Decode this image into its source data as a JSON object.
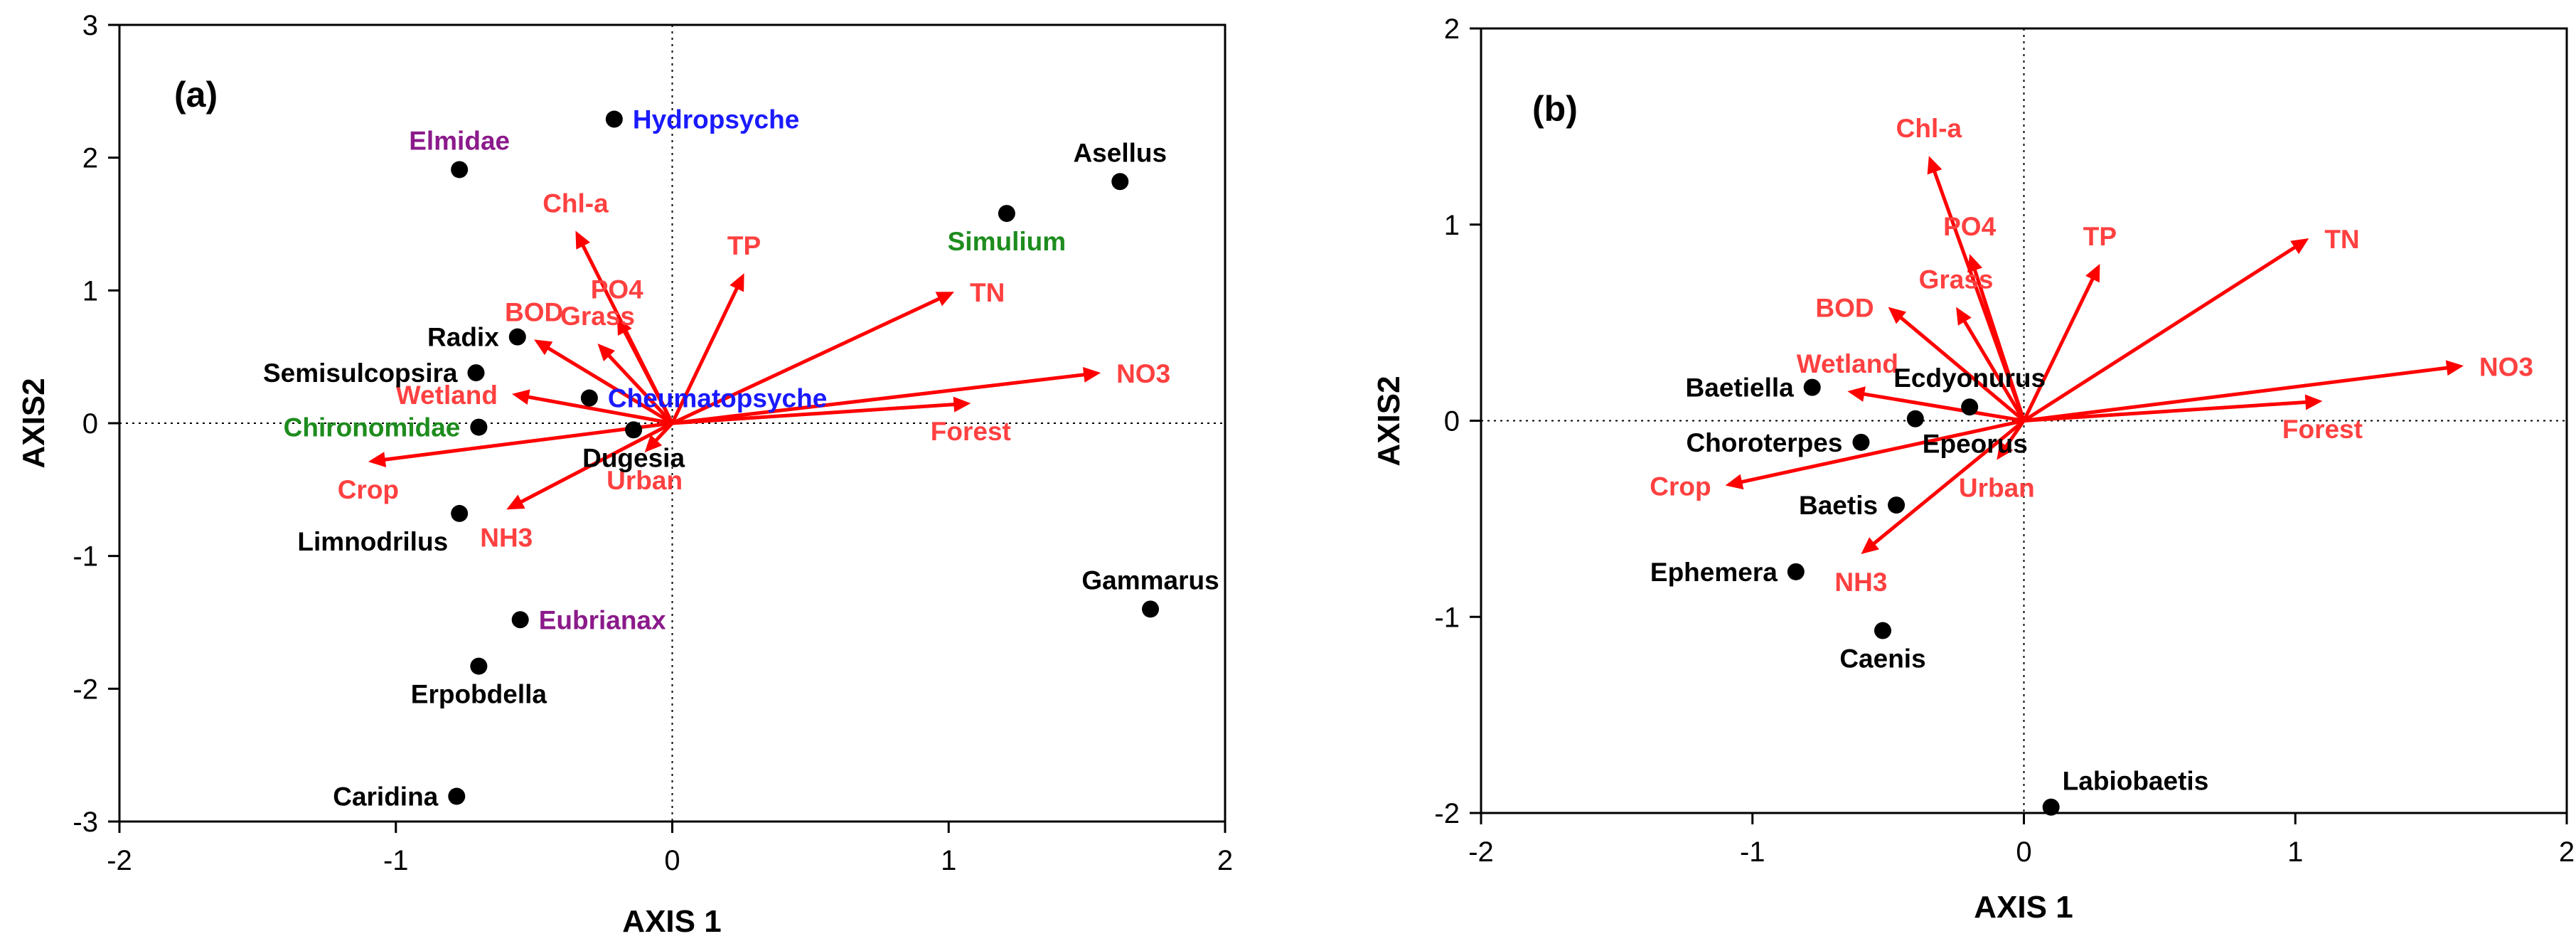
{
  "colors": {
    "vector": "#ff0000",
    "vector_label": "#ff4040",
    "species_default": "#000000",
    "species_blue": "#1a1aff",
    "species_green": "#1e8c1e",
    "species_purple": "#8b1a8b",
    "axis": "#000000"
  },
  "chart_data": [
    {
      "type": "scatter",
      "subtype": "ordination-biplot",
      "panel_label": "(a)",
      "xlabel": "AXIS 1",
      "ylabel": "AXIS2",
      "xlim": [
        -2,
        2
      ],
      "ylim": [
        -3,
        3
      ],
      "xticks": [
        -2,
        -1,
        0,
        1,
        2
      ],
      "yticks": [
        -3,
        -2,
        -1,
        0,
        1,
        2,
        3
      ],
      "reference_lines": "dotted lines at x=0 and y=0",
      "points": [
        {
          "name": "Hydropsyche",
          "x": -0.21,
          "y": 2.29,
          "color": "blue",
          "label_pos": "right"
        },
        {
          "name": "Elmidae",
          "x": -0.77,
          "y": 1.91,
          "color": "purple",
          "label_pos": "above"
        },
        {
          "name": "Asellus",
          "x": 1.62,
          "y": 1.82,
          "color": "black",
          "label_pos": "above"
        },
        {
          "name": "Simulium",
          "x": 1.21,
          "y": 1.58,
          "color": "green",
          "label_pos": "below"
        },
        {
          "name": "Radix",
          "x": -0.56,
          "y": 0.65,
          "color": "black",
          "label_pos": "left"
        },
        {
          "name": "Semisulcopsira",
          "x": -0.71,
          "y": 0.38,
          "color": "black",
          "label_pos": "left"
        },
        {
          "name": "Cheumatopsyche",
          "x": -0.3,
          "y": 0.19,
          "color": "blue",
          "label_pos": "right"
        },
        {
          "name": "Chironomidae",
          "x": -0.7,
          "y": -0.03,
          "color": "green",
          "label_pos": "left"
        },
        {
          "name": "Dugesia",
          "x": -0.14,
          "y": -0.05,
          "color": "black",
          "label_pos": "below"
        },
        {
          "name": "Limnodrilus",
          "x": -0.77,
          "y": -0.68,
          "color": "black",
          "label_pos": "below-left"
        },
        {
          "name": "Eubrianax",
          "x": -0.55,
          "y": -1.48,
          "color": "purple",
          "label_pos": "right"
        },
        {
          "name": "Erpobdella",
          "x": -0.7,
          "y": -1.83,
          "color": "black",
          "label_pos": "below"
        },
        {
          "name": "Caridina",
          "x": -0.78,
          "y": -2.81,
          "color": "black",
          "label_pos": "left"
        },
        {
          "name": "Gammarus",
          "x": 1.73,
          "y": -1.4,
          "color": "black",
          "label_pos": "above"
        }
      ],
      "vectors": [
        {
          "name": "Chl-a",
          "x": -0.35,
          "y": 1.45,
          "label_pos": "above"
        },
        {
          "name": "PO4",
          "x": -0.2,
          "y": 0.8,
          "label_pos": "above"
        },
        {
          "name": "TP",
          "x": 0.26,
          "y": 1.13,
          "label_pos": "above"
        },
        {
          "name": "TN",
          "x": 1.02,
          "y": 0.99,
          "label_pos": "right"
        },
        {
          "name": "BOD",
          "x": -0.5,
          "y": 0.63,
          "label_pos": "above"
        },
        {
          "name": "Grass",
          "x": -0.27,
          "y": 0.6,
          "label_pos": "above"
        },
        {
          "name": "NO3",
          "x": 1.55,
          "y": 0.38,
          "label_pos": "right"
        },
        {
          "name": "Forest",
          "x": 1.08,
          "y": 0.15,
          "label_pos": "below"
        },
        {
          "name": "Wetland",
          "x": -0.58,
          "y": 0.22,
          "label_pos": "left"
        },
        {
          "name": "Crop",
          "x": -1.1,
          "y": -0.29,
          "label_pos": "below"
        },
        {
          "name": "NH3",
          "x": -0.6,
          "y": -0.65,
          "label_pos": "below"
        },
        {
          "name": "Urban",
          "x": -0.1,
          "y": -0.22,
          "label_pos": "below"
        }
      ]
    },
    {
      "type": "scatter",
      "subtype": "ordination-biplot",
      "panel_label": "(b)",
      "xlabel": "AXIS 1",
      "ylabel": "AXIS2",
      "xlim": [
        -2,
        2
      ],
      "ylim": [
        -2,
        2
      ],
      "xticks": [
        -2,
        -1,
        0,
        1,
        2
      ],
      "yticks": [
        -2,
        -1,
        0,
        1,
        2
      ],
      "reference_lines": "dotted lines at x=0 and y=0",
      "points": [
        {
          "name": "Ecdyonurus",
          "x": -0.2,
          "y": 0.07,
          "color": "black",
          "label_pos": "above"
        },
        {
          "name": "Baetiella",
          "x": -0.78,
          "y": 0.17,
          "color": "black",
          "label_pos": "left"
        },
        {
          "name": "Epeorus",
          "x": -0.4,
          "y": 0.01,
          "color": "black",
          "label_pos": "below-right"
        },
        {
          "name": "Choroterpes",
          "x": -0.6,
          "y": -0.11,
          "color": "black",
          "label_pos": "left"
        },
        {
          "name": "Baetis",
          "x": -0.47,
          "y": -0.43,
          "color": "black",
          "label_pos": "left"
        },
        {
          "name": "Ephemera",
          "x": -0.84,
          "y": -0.77,
          "color": "black",
          "label_pos": "left"
        },
        {
          "name": "Caenis",
          "x": -0.52,
          "y": -1.07,
          "color": "black",
          "label_pos": "below"
        },
        {
          "name": "Labiobaetis",
          "x": 0.1,
          "y": -1.97,
          "color": "black",
          "label_pos": "above-right"
        }
      ],
      "vectors": [
        {
          "name": "Chl-a",
          "x": -0.35,
          "y": 1.35,
          "label_pos": "above"
        },
        {
          "name": "PO4",
          "x": -0.2,
          "y": 0.85,
          "label_pos": "above"
        },
        {
          "name": "TP",
          "x": 0.28,
          "y": 0.8,
          "label_pos": "above"
        },
        {
          "name": "TN",
          "x": 1.05,
          "y": 0.93,
          "label_pos": "right"
        },
        {
          "name": "BOD",
          "x": -0.5,
          "y": 0.58,
          "label_pos": "left"
        },
        {
          "name": "Grass",
          "x": -0.25,
          "y": 0.58,
          "label_pos": "above"
        },
        {
          "name": "NO3",
          "x": 1.62,
          "y": 0.28,
          "label_pos": "right"
        },
        {
          "name": "Forest",
          "x": 1.1,
          "y": 0.1,
          "label_pos": "below"
        },
        {
          "name": "Wetland",
          "x": -0.65,
          "y": 0.15,
          "label_pos": "above"
        },
        {
          "name": "Crop",
          "x": -1.1,
          "y": -0.33,
          "label_pos": "left"
        },
        {
          "name": "NH3",
          "x": -0.6,
          "y": -0.68,
          "label_pos": "below"
        },
        {
          "name": "Urban",
          "x": -0.1,
          "y": -0.2,
          "label_pos": "below"
        }
      ]
    }
  ]
}
